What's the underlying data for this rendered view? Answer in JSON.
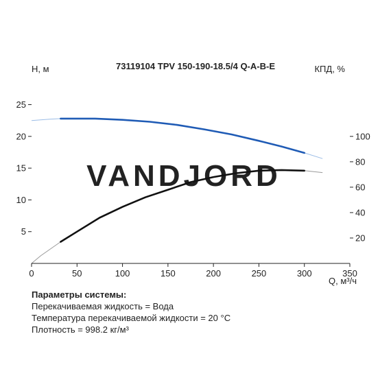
{
  "chart_data": {
    "type": "line",
    "title": "73119104 TPV 150-190-18.5/4 Q-A-B-E",
    "watermark": "VANDJORD",
    "xlabel": "Q, м³/ч",
    "ylabel_left": "H, м",
    "ylabel_right": "КПД, %",
    "x_ticks": [
      "0",
      "50",
      "100",
      "150",
      "200",
      "250",
      "300",
      "350"
    ],
    "y_left_ticks": [
      "5",
      "10",
      "15",
      "20",
      "25"
    ],
    "y_right_ticks": [
      "20",
      "40",
      "60",
      "80",
      "100"
    ],
    "xlim": [
      0,
      350
    ],
    "ylim_left": [
      0,
      27
    ],
    "ylim_right": [
      0,
      135
    ],
    "grid": false,
    "colors": {
      "head": "#1f5bb5",
      "head_ext": "#9bbce6",
      "eff": "#111111",
      "eff_ext": "#999999",
      "watermark": "#e6ecf3"
    },
    "series": [
      {
        "key": "head",
        "axis": "left",
        "x": [
          0,
          10,
          20,
          32,
          50,
          70,
          100,
          130,
          160,
          190,
          220,
          250,
          275,
          300,
          320
        ],
        "values": [
          22.5,
          22.6,
          22.7,
          22.8,
          22.8,
          22.8,
          22.6,
          22.3,
          21.8,
          21.1,
          20.3,
          19.3,
          18.4,
          17.4,
          16.5
        ],
        "operating_range": [
          32,
          300
        ]
      },
      {
        "key": "efficiency",
        "axis": "right",
        "x": [
          0,
          10,
          20,
          32,
          50,
          75,
          100,
          125,
          150,
          175,
          200,
          225,
          250,
          275,
          300,
          320
        ],
        "values": [
          0,
          6,
          11,
          17,
          25,
          36,
          44.5,
          52,
          58,
          64,
          68,
          71,
          73,
          73.5,
          73,
          71.5
        ],
        "operating_range": [
          32,
          300
        ]
      }
    ]
  },
  "params": {
    "heading": "Параметры системы:",
    "lines": [
      "Перекачиваемая жидкость = Вода",
      "Температура перекачиваемой жидкости = 20 °C",
      "Плотность = 998.2 кг/м³"
    ]
  }
}
